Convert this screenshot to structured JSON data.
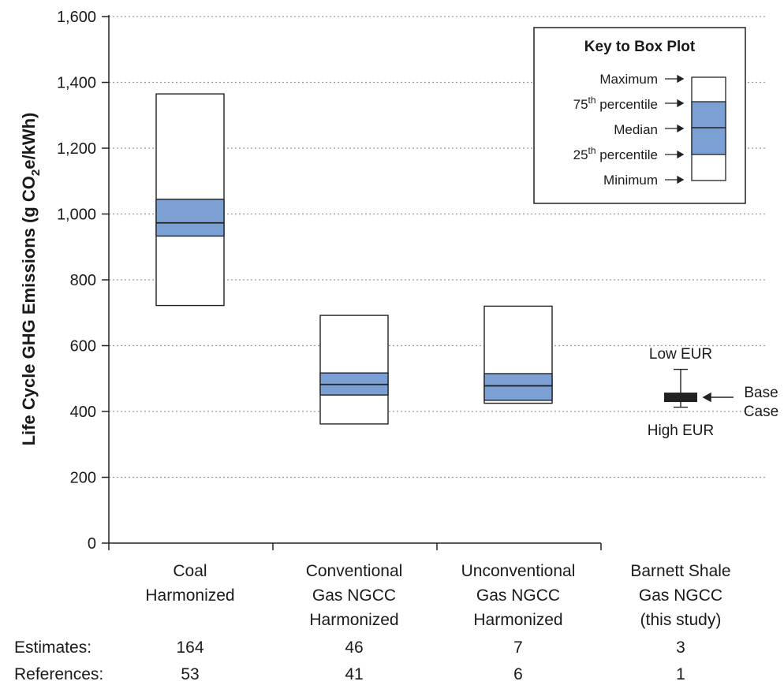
{
  "chart_data": {
    "type": "box",
    "ylabel_prefix": "Life Cycle GHG Emissions (g CO",
    "ylabel_sub": "2",
    "ylabel_suffix": "e/kWh)",
    "ylim": [
      0,
      1600
    ],
    "yticks": [
      0,
      200,
      400,
      600,
      800,
      1000,
      1200,
      1400,
      1600
    ],
    "ytick_labels": [
      "0",
      "200",
      "400",
      "600",
      "800",
      "1,000",
      "1,200",
      "1,400",
      "1,600"
    ],
    "grid": "horizontal dotted",
    "box_fill": "#7ca0d4",
    "categories": [
      {
        "label_lines": [
          "Coal",
          "Harmonized"
        ],
        "min": 722,
        "q1": 933,
        "median": 973,
        "q3": 1045,
        "max": 1365,
        "estimates": "164",
        "references": "53"
      },
      {
        "label_lines": [
          "Conventional",
          "Gas NGCC",
          "Harmonized"
        ],
        "min": 362,
        "q1": 450,
        "median": 482,
        "q3": 517,
        "max": 692,
        "estimates": "46",
        "references": "41"
      },
      {
        "label_lines": [
          "Unconventional",
          "Gas NGCC",
          "Harmonized"
        ],
        "min": 425,
        "q1": 434,
        "median": 478,
        "q3": 515,
        "max": 720,
        "estimates": "7",
        "references": "6"
      },
      {
        "label_lines": [
          "Barnett Shale",
          "Gas NGCC",
          "(this study)"
        ],
        "low_eur": 528,
        "base_case": 443,
        "high_eur": 413,
        "estimates": "3",
        "references": "1"
      }
    ],
    "barnett_annotations": {
      "low": "Low EUR",
      "high": "High EUR",
      "base_line1": "Base",
      "base_line2": "Case"
    },
    "row_labels": {
      "estimates": "Estimates:",
      "references": "References:"
    },
    "key": {
      "title": "Key to Box Plot",
      "maximum": "Maximum",
      "p75_num": "75",
      "p75_sup": "th",
      "p75_rest": " percentile",
      "median": "Median",
      "p25_num": "25",
      "p25_sup": "th",
      "p25_rest": " percentile",
      "minimum": "Minimum"
    }
  }
}
